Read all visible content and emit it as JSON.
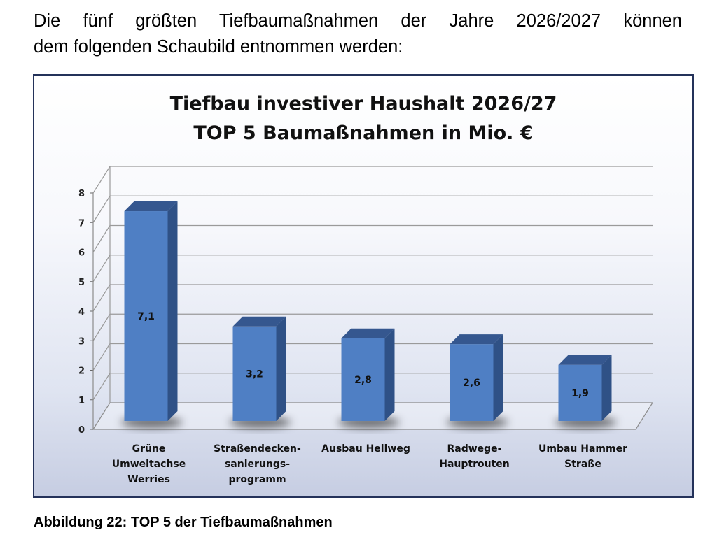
{
  "intro": {
    "line1": "Die fünf größten Tiefbaumaßnahmen der Jahre 2026/2027 können",
    "line2": "dem folgenden Schaubild entnommen werden:"
  },
  "caption": "Abbildung 22: TOP 5 der Tiefbaumaßnahmen",
  "colors": {
    "bar_front": "#4f7fc4",
    "bar_top": "#35578f",
    "bar_side": "#2f5186",
    "frame": "#24325a"
  },
  "chart_data": {
    "type": "bar",
    "title": "Tiefbau investiver Haushalt 2026/27",
    "subtitle": "TOP 5 Baumaßnahmen in Mio. €",
    "categories": [
      [
        "Grüne",
        "Umweltachse",
        "Werries"
      ],
      [
        "Straßendecken-",
        "sanierungs-",
        "programm"
      ],
      [
        "Ausbau Hellweg"
      ],
      [
        "Radwege-",
        "Hauptrouten"
      ],
      [
        "Umbau Hammer",
        "Straße"
      ]
    ],
    "values": [
      7.1,
      3.2,
      2.8,
      2.6,
      1.9
    ],
    "value_labels": [
      "7,1",
      "3,2",
      "2,8",
      "2,6",
      "1,9"
    ],
    "yticks": [
      "0",
      "1",
      "2",
      "3",
      "4",
      "5",
      "6",
      "7",
      "8"
    ],
    "ylim": [
      0,
      8
    ],
    "grid": true,
    "three_d": true
  }
}
